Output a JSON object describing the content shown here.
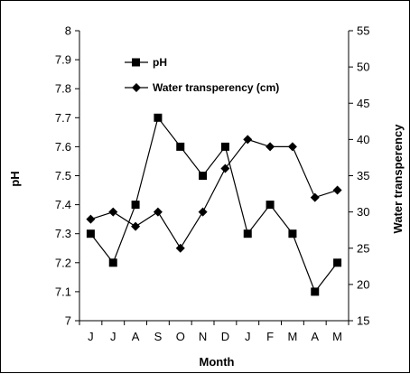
{
  "chart_data": {
    "type": "line",
    "xlabel": "Month",
    "ylabel_left": "pH",
    "ylabel_right": "Water transperency",
    "categories": [
      "J",
      "J",
      "A",
      "S",
      "O",
      "N",
      "D",
      "J",
      "F",
      "M",
      "A",
      "M"
    ],
    "y_left": {
      "min": 7.0,
      "max": 8.0,
      "ticks": [
        "7",
        "7.1",
        "7.2",
        "7.3",
        "7.4",
        "7.5",
        "7.6",
        "7.7",
        "7.8",
        "7.9",
        "8"
      ]
    },
    "y_right": {
      "min": 15,
      "max": 55,
      "ticks": [
        "15",
        "20",
        "25",
        "30",
        "35",
        "40",
        "45",
        "50",
        "55"
      ]
    },
    "series": [
      {
        "name": "pH",
        "axis": "left",
        "marker": "square",
        "color": "#000000",
        "values": [
          7.3,
          7.2,
          7.4,
          7.7,
          7.6,
          7.5,
          7.6,
          7.3,
          7.4,
          7.3,
          7.1,
          7.2
        ]
      },
      {
        "name": "Water transperency (cm)",
        "axis": "right",
        "marker": "diamond",
        "color": "#000000",
        "values": [
          29,
          30,
          28,
          30,
          25,
          30,
          36,
          40,
          39,
          39,
          32,
          33
        ]
      }
    ],
    "legend_position": "top-left",
    "grid": false
  }
}
